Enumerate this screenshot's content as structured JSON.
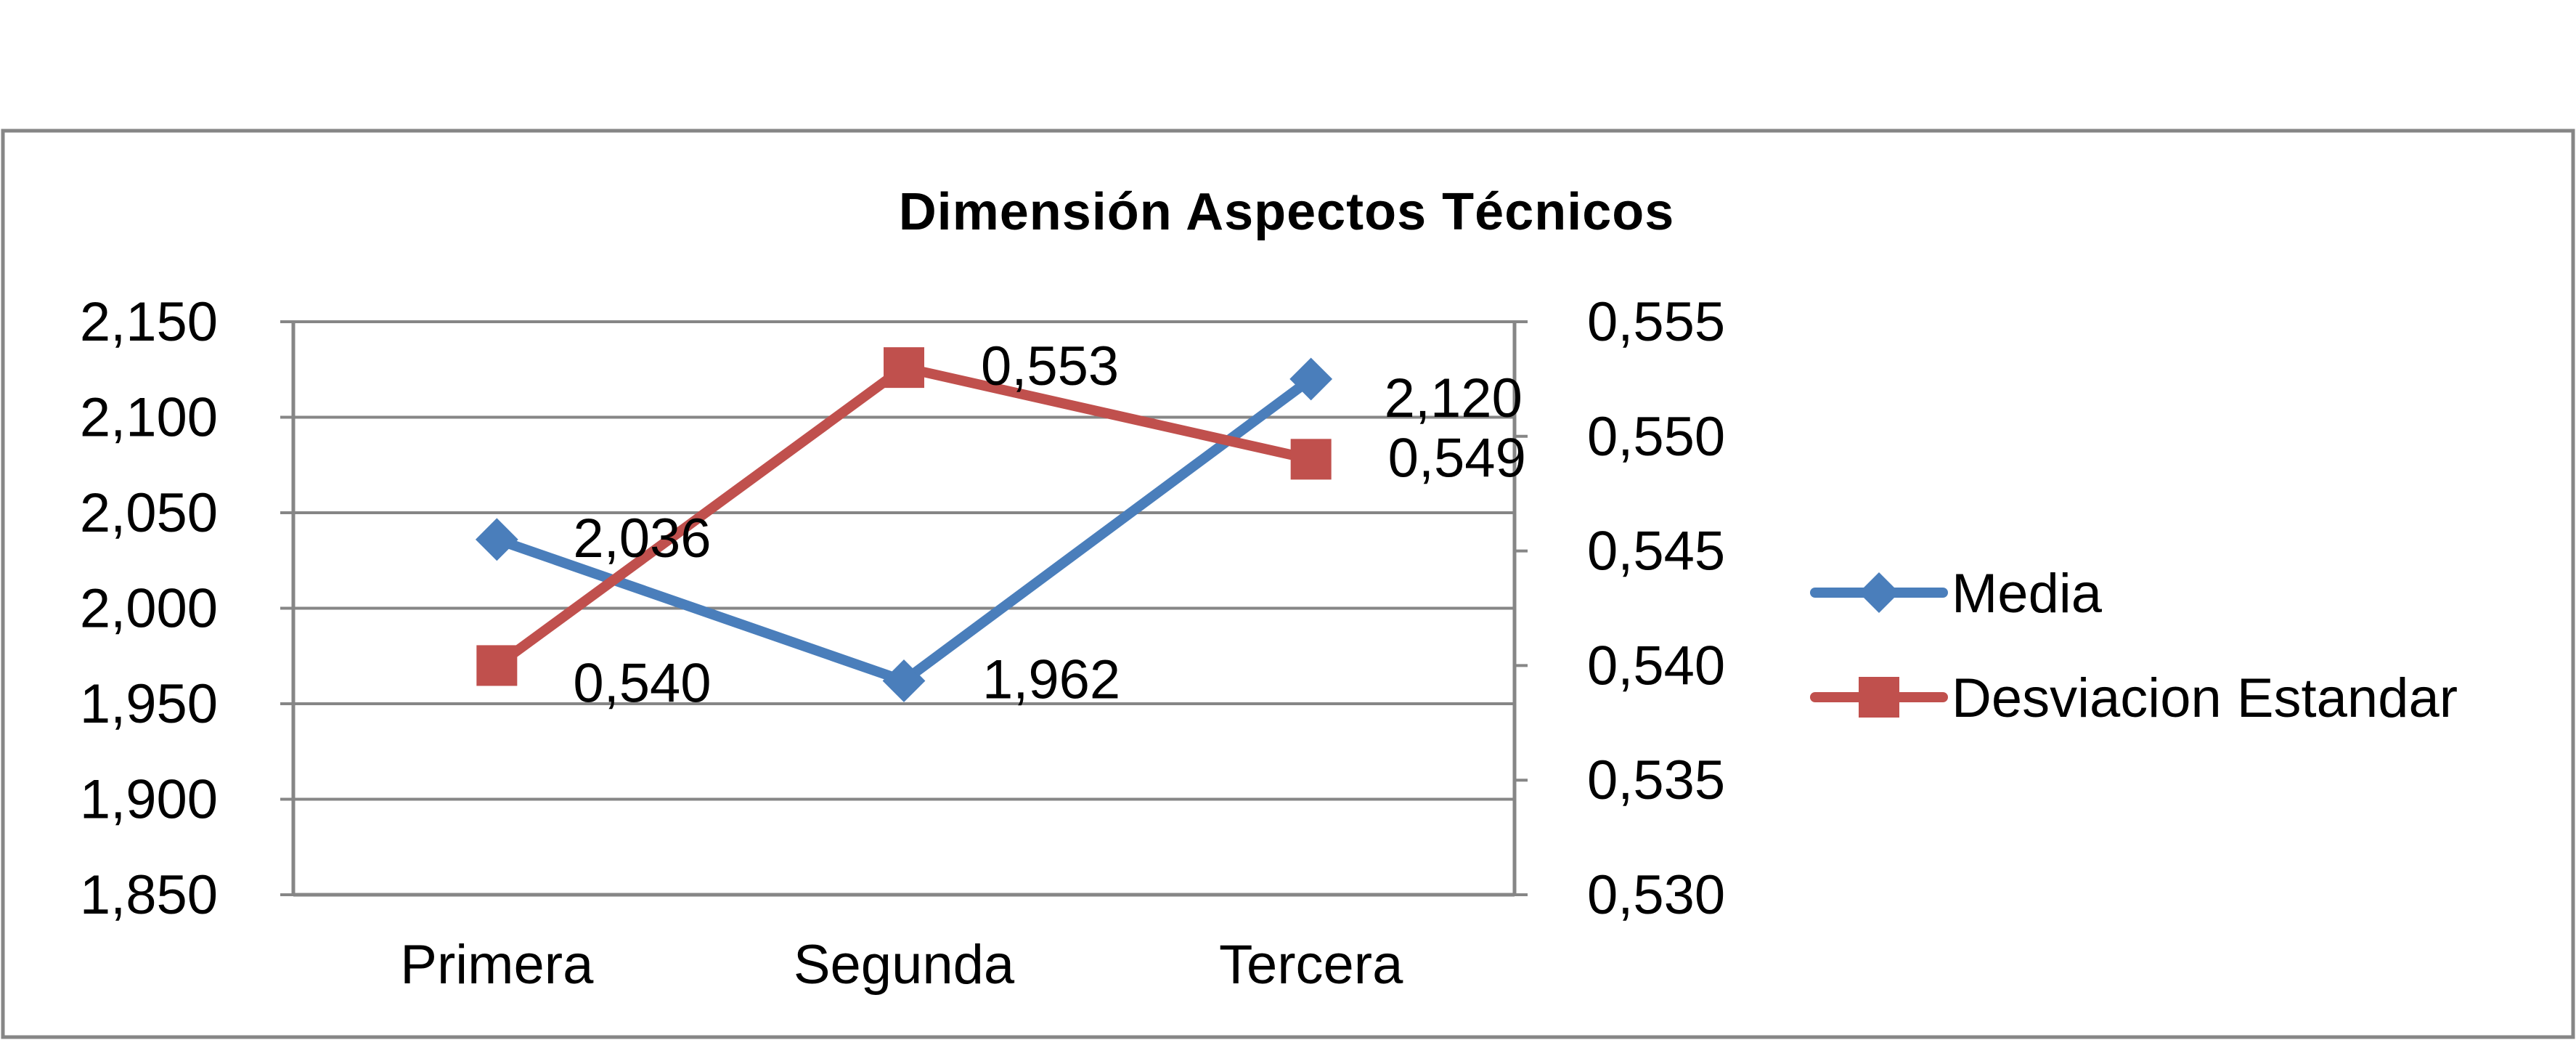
{
  "chart_data": {
    "type": "line",
    "title": "Dimensión Aspectos Técnicos",
    "categories": [
      "Primera",
      "Segunda",
      "Tercera"
    ],
    "series": [
      {
        "name": "Media",
        "axis": "left",
        "color": "#4a7ebb",
        "marker": "diamond",
        "values": [
          2.036,
          1.962,
          2.12
        ],
        "labels": [
          "2,036",
          "1,962",
          "2,120"
        ]
      },
      {
        "name": "Desviacion Estandar",
        "axis": "right",
        "color": "#c0504d",
        "marker": "square",
        "values": [
          0.54,
          0.553,
          0.549
        ],
        "labels": [
          "0,540",
          "0,553",
          "0,549"
        ]
      }
    ],
    "y_left": {
      "ylim": [
        1.85,
        2.15
      ],
      "ticks": [
        1.85,
        1.9,
        1.95,
        2.0,
        2.05,
        2.1,
        2.15
      ],
      "tick_labels": [
        "1,850",
        "1,900",
        "1,950",
        "2,000",
        "2,050",
        "2,100",
        "2,150"
      ]
    },
    "y_right": {
      "ylim": [
        0.53,
        0.555
      ],
      "ticks": [
        0.53,
        0.535,
        0.54,
        0.545,
        0.55,
        0.555
      ],
      "tick_labels": [
        "0,530",
        "0,535",
        "0,540",
        "0,545",
        "0,550",
        "0,555"
      ]
    },
    "grid": true,
    "legend": "right"
  }
}
